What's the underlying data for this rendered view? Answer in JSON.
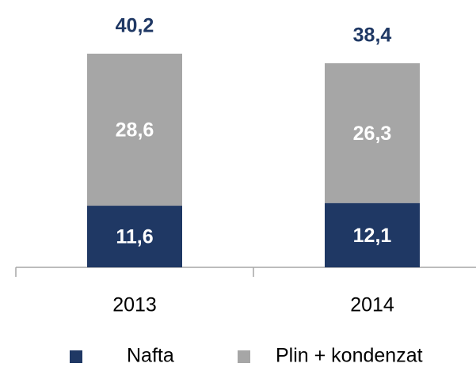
{
  "chart_data": {
    "type": "stacked-bar",
    "categories": [
      "2013",
      "2014"
    ],
    "series": [
      {
        "name": "Nafta",
        "color": "#1f3864",
        "values": [
          11.6,
          12.1
        ],
        "value_labels": [
          "11,6",
          "12,1"
        ]
      },
      {
        "name": "Plin + kondenzat",
        "color": "#a6a6a6",
        "values": [
          28.6,
          26.3
        ],
        "value_labels": [
          "28,6",
          "26,3"
        ]
      }
    ],
    "totals": [
      40.2,
      38.4
    ],
    "total_labels": [
      "40,2",
      "38,4"
    ],
    "ylim": [
      0,
      50
    ]
  }
}
